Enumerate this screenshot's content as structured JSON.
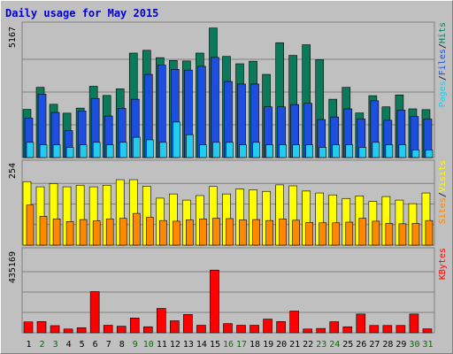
{
  "title": "Daily usage for May 2015",
  "colors": {
    "title": "#0000cc",
    "hits": "#0b7a5a",
    "files": "#1c4fe0",
    "pages": "#22ccee",
    "visits": "#ffff00",
    "sites": "#ff8800",
    "kbytes": "#ff0000",
    "weekday_label": "#000000",
    "weekend_label": "#007000"
  },
  "chart_data": [
    {
      "type": "bar",
      "title": "Daily usage for May 2015",
      "panel": "hits-files-pages",
      "ymax_label": "5167",
      "legend": [
        {
          "text": "Pages",
          "color": "#22ccee"
        },
        {
          "text": "/",
          "color": "#000000"
        },
        {
          "text": "Files",
          "color": "#1c4fe0"
        },
        {
          "text": "/",
          "color": "#000000"
        },
        {
          "text": "Hits",
          "color": "#0b7a5a"
        }
      ],
      "ylim": [
        0,
        5167
      ],
      "categories": [
        "1",
        "2",
        "3",
        "4",
        "5",
        "6",
        "7",
        "8",
        "9",
        "10",
        "11",
        "12",
        "13",
        "14",
        "15",
        "16",
        "17",
        "18",
        "19",
        "20",
        "21",
        "22",
        "23",
        "24",
        "25",
        "26",
        "27",
        "28",
        "29",
        "30",
        "31"
      ],
      "weekend_days": [
        "2",
        "3",
        "9",
        "10",
        "16",
        "17",
        "23",
        "24",
        "30",
        "31"
      ],
      "series": [
        {
          "name": "Hits",
          "values": [
            1900,
            2770,
            2100,
            1750,
            1950,
            2810,
            2450,
            2710,
            4120,
            4230,
            3940,
            3830,
            3810,
            4120,
            5110,
            3990,
            3700,
            3800,
            3280,
            4530,
            4030,
            4450,
            3860,
            2300,
            2770,
            1760,
            2440,
            2000,
            2470,
            1920,
            1890
          ]
        },
        {
          "name": "Files",
          "values": [
            1560,
            2500,
            1780,
            1060,
            1840,
            2330,
            1640,
            1940,
            2300,
            3280,
            3650,
            3480,
            3450,
            3600,
            3950,
            3000,
            2900,
            2900,
            2000,
            2000,
            2090,
            2140,
            1500,
            1600,
            1920,
            1520,
            2240,
            1470,
            1870,
            1620,
            1520
          ]
        },
        {
          "name": "Pages",
          "values": [
            600,
            500,
            500,
            400,
            500,
            600,
            500,
            600,
            800,
            700,
            600,
            1400,
            900,
            500,
            600,
            600,
            500,
            600,
            500,
            500,
            500,
            500,
            400,
            500,
            500,
            400,
            600,
            500,
            500,
            300,
            300
          ]
        }
      ]
    },
    {
      "type": "bar",
      "panel": "visits-sites",
      "ymax_label": "254",
      "legend": [
        {
          "text": "Sites",
          "color": "#ff8800"
        },
        {
          "text": "/",
          "color": "#000000"
        },
        {
          "text": "Visits",
          "color": "#ffff00"
        }
      ],
      "ylim": [
        0,
        254
      ],
      "categories": [
        "1",
        "2",
        "3",
        "4",
        "5",
        "6",
        "7",
        "8",
        "9",
        "10",
        "11",
        "12",
        "13",
        "14",
        "15",
        "16",
        "17",
        "18",
        "19",
        "20",
        "21",
        "22",
        "23",
        "24",
        "25",
        "26",
        "27",
        "28",
        "29",
        "30",
        "31"
      ],
      "series": [
        {
          "name": "Visits",
          "values": [
            196,
            180,
            190,
            180,
            185,
            180,
            185,
            202,
            202,
            182,
            145,
            158,
            139,
            153,
            181,
            158,
            173,
            171,
            166,
            186,
            183,
            167,
            161,
            155,
            144,
            152,
            135,
            150,
            139,
            128,
            161
          ]
        },
        {
          "name": "Sites",
          "values": [
            124,
            89,
            81,
            73,
            79,
            75,
            81,
            83,
            98,
            86,
            76,
            74,
            78,
            81,
            83,
            82,
            78,
            79,
            76,
            81,
            77,
            70,
            69,
            69,
            71,
            83,
            74,
            67,
            66,
            67,
            76
          ]
        }
      ]
    },
    {
      "type": "bar",
      "panel": "kbytes",
      "ymax_label": "435169",
      "legend": [
        {
          "text": "KBytes",
          "color": "#ff0000"
        }
      ],
      "ylim": [
        0,
        435169
      ],
      "categories": [
        "1",
        "2",
        "3",
        "4",
        "5",
        "6",
        "7",
        "8",
        "9",
        "10",
        "11",
        "12",
        "13",
        "14",
        "15",
        "16",
        "17",
        "18",
        "19",
        "20",
        "21",
        "22",
        "23",
        "24",
        "25",
        "26",
        "27",
        "28",
        "29",
        "30",
        "31"
      ],
      "series": [
        {
          "name": "KBytes",
          "values": [
            58000,
            60000,
            38000,
            20000,
            27000,
            220000,
            40000,
            35000,
            79000,
            32000,
            130000,
            64000,
            98000,
            40000,
            335000,
            49000,
            40000,
            40000,
            73000,
            60000,
            116000,
            20000,
            23000,
            59000,
            32000,
            100000,
            39000,
            39000,
            39000,
            100000,
            21000
          ]
        }
      ]
    }
  ]
}
